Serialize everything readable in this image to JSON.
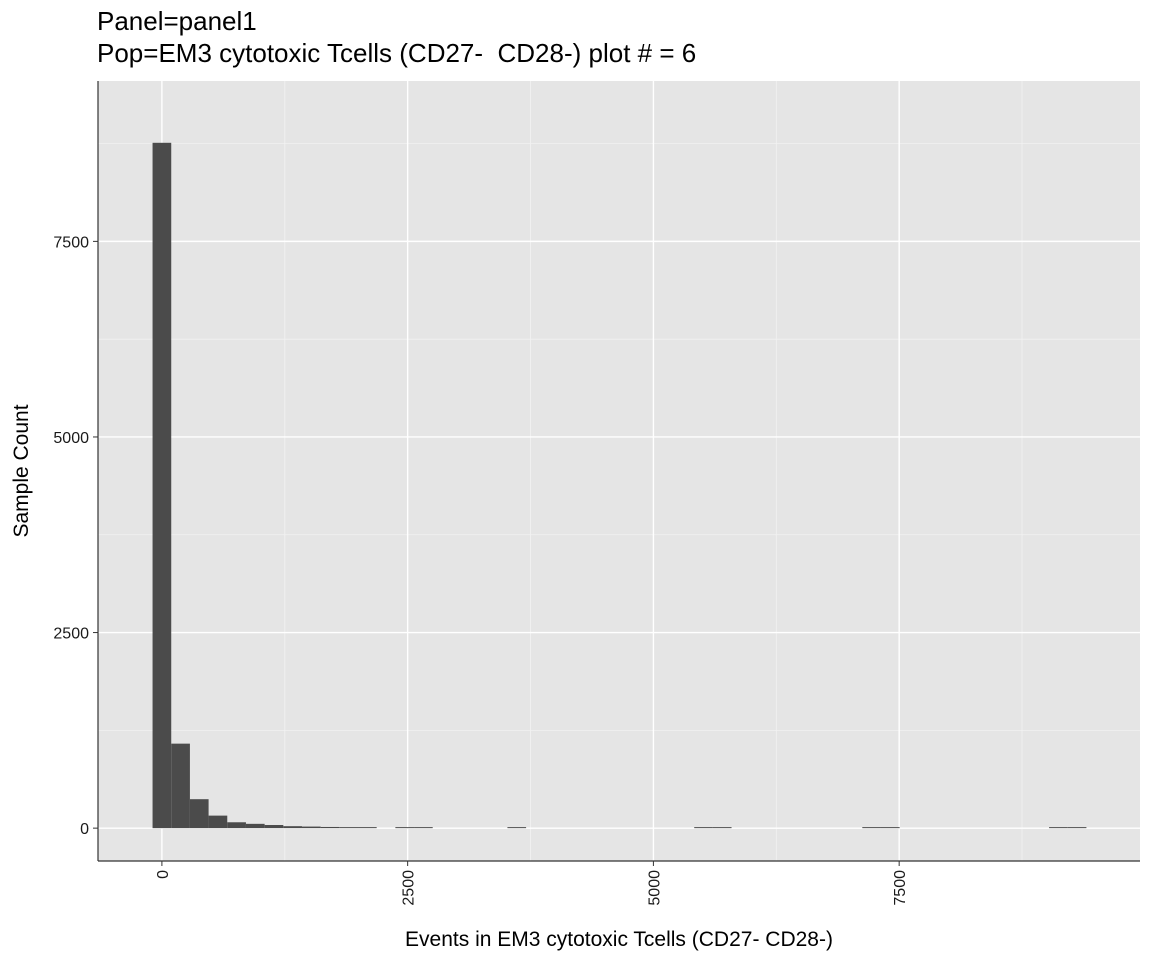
{
  "chart_data": {
    "type": "bar",
    "title": "Panel=panel1",
    "subtitle": "Pop=EM3 cytotoxic Tcells (CD27-  CD28-) plot # = 6",
    "xlabel": "Events in EM3 cytotoxic Tcells (CD27-  CD28-)",
    "ylabel": "Sample Count",
    "xlim": [
      -650,
      9950
    ],
    "ylim": [
      -420,
      9550
    ],
    "xticks": [
      0,
      2500,
      5000,
      7500
    ],
    "xtick_labels": [
      "0",
      "2500",
      "5000",
      "7500"
    ],
    "yticks": [
      0,
      2500,
      5000,
      7500
    ],
    "ytick_labels": [
      "0",
      "2500",
      "5000",
      "7500"
    ],
    "grid": true,
    "bin_width": 190,
    "bins": [
      {
        "x0": -95,
        "x1": 95,
        "count": 8760
      },
      {
        "x0": 95,
        "x1": 285,
        "count": 1080
      },
      {
        "x0": 285,
        "x1": 475,
        "count": 370
      },
      {
        "x0": 475,
        "x1": 665,
        "count": 160
      },
      {
        "x0": 665,
        "x1": 855,
        "count": 75
      },
      {
        "x0": 855,
        "x1": 1045,
        "count": 55
      },
      {
        "x0": 1045,
        "x1": 1235,
        "count": 40
      },
      {
        "x0": 1235,
        "x1": 1425,
        "count": 25
      },
      {
        "x0": 1425,
        "x1": 1615,
        "count": 20
      },
      {
        "x0": 1615,
        "x1": 1805,
        "count": 15
      },
      {
        "x0": 1805,
        "x1": 1995,
        "count": 12
      },
      {
        "x0": 1995,
        "x1": 2185,
        "count": 8
      },
      {
        "x0": 2375,
        "x1": 2565,
        "count": 6
      },
      {
        "x0": 2565,
        "x1": 2755,
        "count": 5
      },
      {
        "x0": 3515,
        "x1": 3705,
        "count": 4
      },
      {
        "x0": 5415,
        "x1": 5605,
        "count": 3
      },
      {
        "x0": 5605,
        "x1": 5795,
        "count": 2
      },
      {
        "x0": 7125,
        "x1": 7315,
        "count": 3
      },
      {
        "x0": 7315,
        "x1": 7505,
        "count": 3
      },
      {
        "x0": 9025,
        "x1": 9215,
        "count": 3
      },
      {
        "x0": 9215,
        "x1": 9405,
        "count": 3
      }
    ],
    "colors": {
      "panel_background": "#e5e5e5",
      "grid_major": "#ffffff",
      "grid_minor": "#f2f2f2",
      "bar_fill": "#4b4b4b",
      "axis_line": "#333333"
    }
  }
}
